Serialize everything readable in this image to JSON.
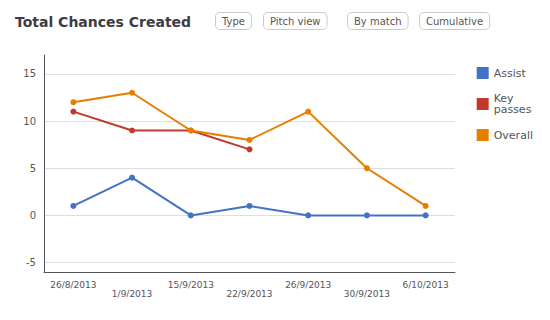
{
  "chart_data": {
    "type": "line",
    "title": "Total Chances Created",
    "annotations": [
      "Type",
      "Pitch view",
      "By match",
      "Cumulative"
    ],
    "categories": [
      "26/8/2013",
      "1/9/2013",
      "15/9/2013",
      "22/9/2013",
      "26/9/2013",
      "30/9/2013",
      "6/10/2013"
    ],
    "series": [
      {
        "name": "Assist",
        "color": "#4472C4",
        "values": [
          1,
          4,
          0,
          1,
          0,
          0,
          0
        ]
      },
      {
        "name": "Key\npasses",
        "color": "#C0392B",
        "values": [
          11,
          9,
          9,
          7,
          null,
          null,
          null
        ]
      },
      {
        "name": "Overall",
        "color": "#E67E00",
        "values": [
          12,
          13,
          9,
          8,
          11,
          5,
          1
        ]
      }
    ],
    "ylim": [
      -6,
      17
    ],
    "yticks": [
      -5,
      0,
      5,
      10,
      15
    ],
    "grid": true,
    "legend": "right",
    "marker": "circle"
  }
}
